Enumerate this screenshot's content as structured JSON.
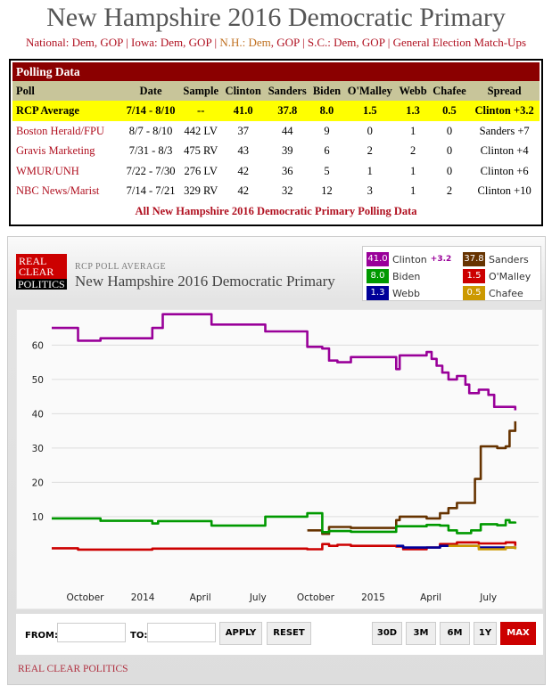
{
  "title": "New Hampshire 2016 Democratic Primary",
  "nav": {
    "national": "National:",
    "iowa": "Iowa:",
    "nh": "N.H.:",
    "sc": "S.C.:",
    "dem": "Dem",
    "gop": "GOP",
    "ge": "General Election Match-Ups"
  },
  "table": {
    "caption": "Polling Data",
    "headers": [
      "Poll",
      "Date",
      "Sample",
      "Clinton",
      "Sanders",
      "Biden",
      "O'Malley",
      "Webb",
      "Chafee",
      "Spread"
    ],
    "rows": [
      [
        "RCP Average",
        "7/14 - 8/10",
        "--",
        "41.0",
        "37.8",
        "8.0",
        "1.5",
        "1.3",
        "0.5",
        "Clinton +3.2"
      ],
      [
        "Boston Herald/FPU",
        "8/7 - 8/10",
        "442 LV",
        "37",
        "44",
        "9",
        "0",
        "1",
        "0",
        "Sanders +7"
      ],
      [
        "Gravis Marketing",
        "7/31 - 8/3",
        "475 RV",
        "43",
        "39",
        "6",
        "2",
        "2",
        "0",
        "Clinton +4"
      ],
      [
        "WMUR/UNH",
        "7/22 - 7/30",
        "276 LV",
        "42",
        "36",
        "5",
        "1",
        "1",
        "0",
        "Clinton +6"
      ],
      [
        "NBC News/Marist",
        "7/14 - 7/21",
        "329 RV",
        "42",
        "32",
        "12",
        "3",
        "1",
        "2",
        "Clinton +10"
      ]
    ],
    "all_link": "All New Hampshire 2016 Democratic Primary Polling Data"
  },
  "chart_header": {
    "logo": "REAL CLEAR POLITICS",
    "logo_l1": "REAL",
    "logo_l2": "CLEAR",
    "logo_l3": "POLITICS",
    "subtitle": "RCP POLL AVERAGE",
    "title": "New Hampshire 2016 Democratic Primary"
  },
  "legend": [
    {
      "name": "Clinton",
      "value": "41.0",
      "color": "#990099",
      "spread": "+3.2"
    },
    {
      "name": "Sanders",
      "value": "37.8",
      "color": "#663300"
    },
    {
      "name": "Biden",
      "value": "8.0",
      "color": "#009900"
    },
    {
      "name": "O'Malley",
      "value": "1.5",
      "color": "#cc0000"
    },
    {
      "name": "Webb",
      "value": "1.3",
      "color": "#000099"
    },
    {
      "name": "Chafee",
      "value": "0.5",
      "color": "#cc9900"
    }
  ],
  "controls": {
    "from": "FROM:",
    "to": "TO:",
    "from_value": "",
    "to_value": "",
    "apply": "APPLY",
    "reset": "RESET",
    "ranges": [
      "30D",
      "3M",
      "6M",
      "1Y",
      "MAX"
    ],
    "active": "MAX"
  },
  "footer": "REAL CLEAR POLITICS",
  "chart_data": {
    "type": "line",
    "title": "New Hampshire 2016 Democratic Primary",
    "xlabel": "",
    "ylabel": "",
    "x_units": "months since Jan 2013",
    "xlim": [
      7.26,
      31.5
    ],
    "ylim": [
      -3,
      71
    ],
    "yticks": [
      10,
      20,
      30,
      40,
      50,
      60
    ],
    "xticks": [
      {
        "x": 9,
        "label": "October"
      },
      {
        "x": 12,
        "label": "2014"
      },
      {
        "x": 15,
        "label": "April"
      },
      {
        "x": 18,
        "label": "July"
      },
      {
        "x": 21,
        "label": "October"
      },
      {
        "x": 24,
        "label": "2015"
      },
      {
        "x": 27,
        "label": "April"
      },
      {
        "x": 30,
        "label": "July"
      }
    ],
    "grid": true,
    "series": [
      {
        "name": "Clinton",
        "color": "#990099",
        "points": [
          [
            7.26,
            65
          ],
          [
            8.63,
            61.3
          ],
          [
            9.8,
            62
          ],
          [
            12.5,
            65
          ],
          [
            13.04,
            69
          ],
          [
            15.58,
            66
          ],
          [
            18.38,
            64
          ],
          [
            20.57,
            59.5
          ],
          [
            21.35,
            59
          ],
          [
            21.7,
            55.5
          ],
          [
            22.14,
            55
          ],
          [
            22.84,
            56.5
          ],
          [
            25.2,
            53
          ],
          [
            25.38,
            57
          ],
          [
            26.78,
            58
          ],
          [
            27.04,
            56
          ],
          [
            27.3,
            54
          ],
          [
            27.6,
            52
          ],
          [
            27.92,
            50
          ],
          [
            28.36,
            51
          ],
          [
            28.8,
            48.5
          ],
          [
            29.0,
            46
          ],
          [
            29.5,
            47
          ],
          [
            30.0,
            45.5
          ],
          [
            30.3,
            42
          ],
          [
            31.4,
            41
          ]
        ]
      },
      {
        "name": "Sanders",
        "color": "#663300",
        "points": [
          [
            20.57,
            6
          ],
          [
            21.35,
            5
          ],
          [
            21.7,
            7
          ],
          [
            22.84,
            6.7
          ],
          [
            25.2,
            9
          ],
          [
            25.38,
            10
          ],
          [
            26.78,
            9.5
          ],
          [
            27.48,
            11
          ],
          [
            27.92,
            12.5
          ],
          [
            28.36,
            14
          ],
          [
            29.3,
            21
          ],
          [
            29.6,
            30.5
          ],
          [
            30.46,
            30
          ],
          [
            30.9,
            30.5
          ],
          [
            31.1,
            35
          ],
          [
            31.4,
            37.8
          ]
        ]
      },
      {
        "name": "Biden",
        "color": "#009900",
        "points": [
          [
            7.26,
            9.5
          ],
          [
            9.8,
            8.8
          ],
          [
            12.5,
            8
          ],
          [
            12.8,
            8.7
          ],
          [
            15.58,
            7.4
          ],
          [
            18.38,
            10
          ],
          [
            20.57,
            11
          ],
          [
            21.35,
            5.5
          ],
          [
            21.7,
            5.8
          ],
          [
            22.84,
            5.6
          ],
          [
            25.2,
            7.2
          ],
          [
            26.78,
            7.6
          ],
          [
            27.48,
            7.4
          ],
          [
            27.92,
            6
          ],
          [
            28.36,
            5.2
          ],
          [
            29.1,
            6
          ],
          [
            29.6,
            7.8
          ],
          [
            30.46,
            7.5
          ],
          [
            30.9,
            9
          ],
          [
            31.1,
            8.3
          ],
          [
            31.4,
            8.0
          ]
        ]
      },
      {
        "name": "O'Malley",
        "color": "#cc0000",
        "points": [
          [
            7.26,
            0.8
          ],
          [
            8.63,
            0.4
          ],
          [
            12.5,
            0.7
          ],
          [
            20.57,
            0.5
          ],
          [
            21.35,
            2
          ],
          [
            21.7,
            1.5
          ],
          [
            22.14,
            1.8
          ],
          [
            22.84,
            1.5
          ],
          [
            25.2,
            1.3
          ],
          [
            25.56,
            0.5
          ],
          [
            26.78,
            1
          ],
          [
            27.48,
            2
          ],
          [
            28.36,
            2.5
          ],
          [
            29.5,
            2.2
          ],
          [
            30.9,
            2.5
          ],
          [
            31.4,
            1.5
          ]
        ]
      },
      {
        "name": "Webb",
        "color": "#000099",
        "points": [
          [
            25.2,
            1.5
          ],
          [
            25.56,
            1
          ],
          [
            27.48,
            1.5
          ],
          [
            29.5,
            1
          ],
          [
            31.4,
            1.3
          ]
        ]
      },
      {
        "name": "Chafee",
        "color": "#cc9900",
        "points": [
          [
            27.92,
            1.5
          ],
          [
            29.5,
            0.5
          ],
          [
            30.9,
            1
          ],
          [
            31.4,
            0.5
          ]
        ]
      }
    ]
  }
}
